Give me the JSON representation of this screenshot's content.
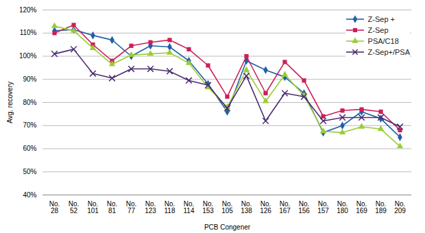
{
  "chart_data": {
    "type": "line",
    "x_label": "PCB Congener",
    "y_label": "Avg. recovery",
    "categories": [
      "No. 28",
      "No. 52",
      "No. 101",
      "No. 81",
      "No. 77",
      "No. 123",
      "No. 118",
      "No. 114",
      "No. 153",
      "No. 105",
      "No. 138",
      "No. 126",
      "No. 167",
      "No. 156",
      "No. 157",
      "No. 180",
      "No. 169",
      "No. 189",
      "No. 209"
    ],
    "series": [
      {
        "name": "Z-Sep +",
        "color": "#1f5fa8",
        "marker": "diamond",
        "values": [
          111,
          111.5,
          109,
          107,
          100,
          104.5,
          104,
          98,
          88,
          76,
          98,
          94,
          91,
          84,
          67,
          70,
          76,
          73,
          65
        ]
      },
      {
        "name": "Z-Sep",
        "color": "#cc1f5a",
        "marker": "square",
        "values": [
          110,
          113.5,
          105,
          98,
          104.5,
          106,
          107,
          103,
          96,
          82.5,
          100,
          84,
          97.5,
          89.5,
          74,
          76.5,
          77,
          76,
          68
        ]
      },
      {
        "name": "PSA/C18",
        "color": "#9acd32",
        "marker": "triangle",
        "values": [
          113,
          111,
          103.5,
          96.5,
          100.5,
          101,
          101.5,
          97,
          86.5,
          78,
          94,
          80.5,
          92,
          83,
          67.5,
          67,
          69.5,
          68.5,
          61
        ]
      },
      {
        "name": "Z-Sep+/PSA",
        "color": "#4b2c71",
        "marker": "x",
        "values": [
          101,
          103,
          92.5,
          90.5,
          94.5,
          94.5,
          93.5,
          89.5,
          87.5,
          77.5,
          91.5,
          72,
          84,
          82.5,
          72,
          73.5,
          73.5,
          73.5,
          69.5
        ]
      }
    ],
    "ylim": [
      40,
      120
    ],
    "yticks": [
      {
        "value": 40,
        "label": "40%"
      },
      {
        "value": 50,
        "label": "50%"
      },
      {
        "value": 60,
        "label": "60%"
      },
      {
        "value": 70,
        "label": "70%"
      },
      {
        "value": 80,
        "label": "80%"
      },
      {
        "value": 90,
        "label": "90%"
      },
      {
        "value": 100,
        "label": "100%"
      },
      {
        "value": 110,
        "label": "110%"
      },
      {
        "value": 120,
        "label": "120%"
      }
    ],
    "grid": true,
    "legend": "top-right"
  }
}
